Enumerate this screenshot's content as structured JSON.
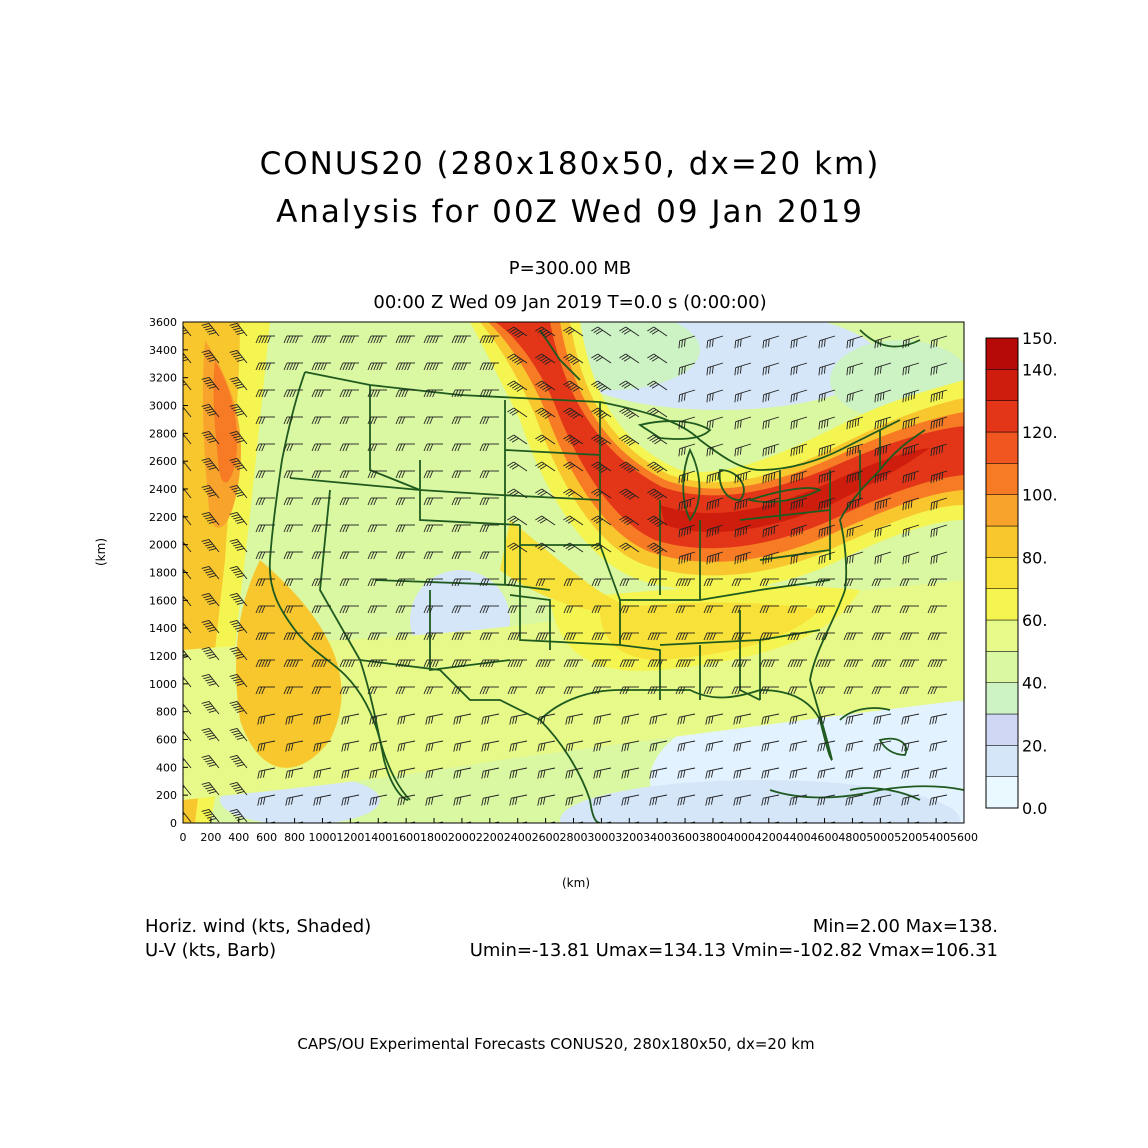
{
  "title": {
    "line1": "CONUS20 (280x180x50, dx=20 km)",
    "line2": "Analysis for 00Z Wed 09 Jan 2019"
  },
  "subtitle": {
    "level": "P=300.00 MB",
    "time": "00:00 Z Wed 09 Jan 2019    T=0.0 s (0:00:00)"
  },
  "axes": {
    "xlabel": "(km)",
    "ylabel": "(km)",
    "xticks": [
      "0",
      "200",
      "400",
      "600",
      "800",
      "1000",
      "1200",
      "1400",
      "1600",
      "1800",
      "2000",
      "2200",
      "2400",
      "2600",
      "2800",
      "3000",
      "3200",
      "3400",
      "3600",
      "3800",
      "4000",
      "4200",
      "4400",
      "4600",
      "4800",
      "5000",
      "5200",
      "5400",
      "5600"
    ],
    "yticks": [
      "0",
      "200",
      "400",
      "600",
      "800",
      "1000",
      "1200",
      "1400",
      "1600",
      "1800",
      "2000",
      "2200",
      "2400",
      "2600",
      "2800",
      "3000",
      "3200",
      "3400",
      "3600"
    ],
    "xlim": [
      0,
      5600
    ],
    "ylim": [
      0,
      3600
    ]
  },
  "colorbar": {
    "labels": [
      "0.0",
      "20.",
      "40.",
      "60.",
      "80.",
      "100.",
      "120.",
      "140.",
      "150."
    ],
    "levels": [
      0,
      10,
      20,
      30,
      40,
      50,
      60,
      70,
      80,
      90,
      100,
      110,
      120,
      130,
      140,
      150
    ],
    "colors": [
      "#eaf8ff",
      "#d5e6f8",
      "#cfd7f5",
      "#cdf2c4",
      "#daf7a2",
      "#e6f989",
      "#f5f551",
      "#f8e138",
      "#f8c72e",
      "#f8a42c",
      "#f77a24",
      "#f15520",
      "#e33518",
      "#cf1d0d",
      "#b50a08"
    ]
  },
  "legend": {
    "shaded": "Horiz. wind (kts, Shaded)",
    "barb": "U-V (kts, Barb)",
    "minmax": "Min=2.00 Max=138.",
    "uv_stats": "Umin=-13.81 Umax=134.13 Vmin=-102.82 Vmax=106.31"
  },
  "footer": "CAPS/OU Experimental Forecasts  CONUS20, 280x180x50, dx=20 km",
  "colors": {
    "map_lines": "#1f5a1f",
    "barbs": "#222222"
  }
}
